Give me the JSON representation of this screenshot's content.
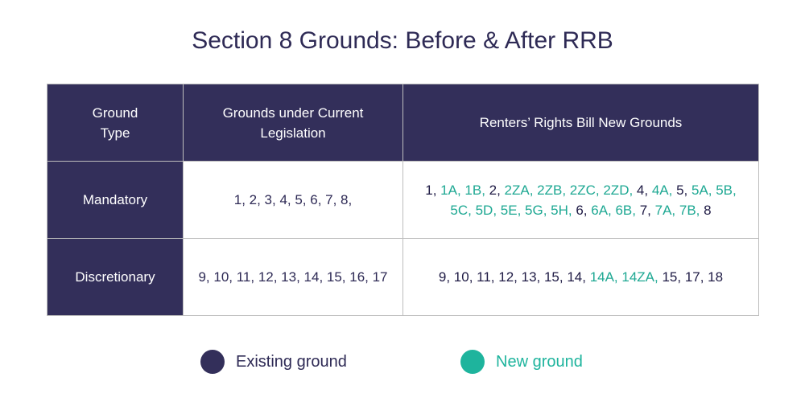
{
  "title": "Section 8 Grounds: Before & After RRB",
  "columns": [
    "Ground\nType",
    "Grounds under Current Legislation",
    "Renters’ Rights Bill New Grounds"
  ],
  "rows": [
    {
      "type": "Mandatory",
      "current": "1, 2, 3, 4, 5, 6, 7, 8,",
      "new_segments": [
        {
          "text": "1, ",
          "kind": "existing"
        },
        {
          "text": "1A, 1B, ",
          "kind": "new"
        },
        {
          "text": "2, ",
          "kind": "existing"
        },
        {
          "text": "2ZA, 2ZB, 2ZC, 2ZD, ",
          "kind": "new"
        },
        {
          "text": "4, ",
          "kind": "existing"
        },
        {
          "text": "4A, ",
          "kind": "new"
        },
        {
          "text": "5, ",
          "kind": "existing"
        },
        {
          "text": "5A, 5B, 5C, 5D, 5E, 5G, 5H, ",
          "kind": "new"
        },
        {
          "text": "6, ",
          "kind": "existing"
        },
        {
          "text": "6A, 6B, ",
          "kind": "new"
        },
        {
          "text": "7, ",
          "kind": "existing"
        },
        {
          "text": "7A, 7B, ",
          "kind": "new"
        },
        {
          "text": "8",
          "kind": "existing"
        }
      ]
    },
    {
      "type": "Discretionary",
      "current": "9, 10, 11, 12, 13, 14, 15, 16, 17",
      "new_segments": [
        {
          "text": "9, 10, 11, 12, 13, 15, 14, ",
          "kind": "existing"
        },
        {
          "text": "14A, 14ZA, ",
          "kind": "new"
        },
        {
          "text": "15, 17, 18",
          "kind": "existing"
        }
      ]
    }
  ],
  "legend": {
    "existing": "Existing ground",
    "new": "New ground"
  },
  "colors": {
    "header_bg": "#332f5a",
    "existing": "#332f5a",
    "new": "#1eb49d"
  }
}
